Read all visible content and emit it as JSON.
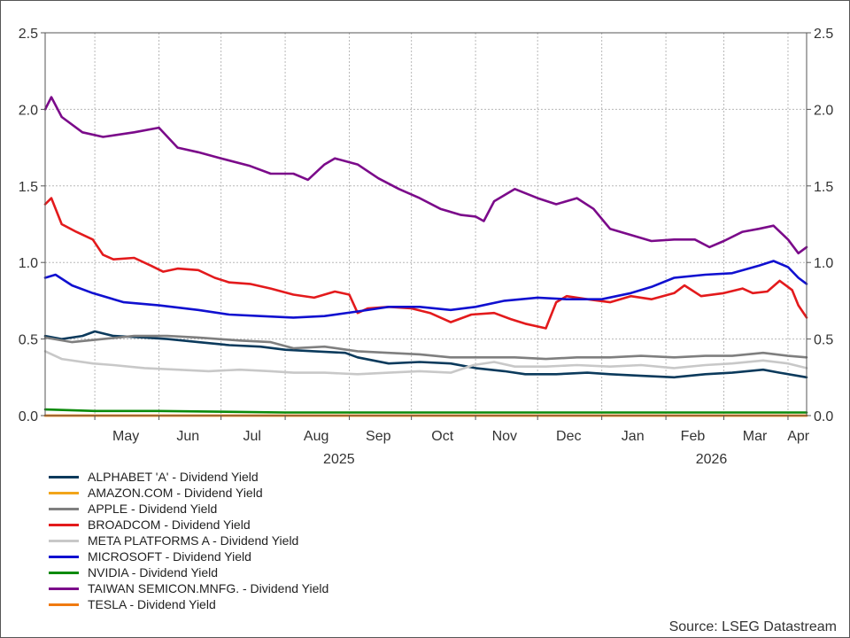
{
  "chart_data": {
    "type": "line",
    "title": "",
    "xlabel": "",
    "ylabel": "",
    "ylim": [
      0,
      2.5
    ],
    "y_ticks": [
      "0.0",
      "0.5",
      "1.0",
      "1.5",
      "2.0",
      "2.5"
    ],
    "y_axis_sides": "left-and-right",
    "grid": true,
    "x_range": [
      "2025-04-07",
      "2026-04-10"
    ],
    "month_labels": [
      {
        "label": "May",
        "date": "2025-05-16"
      },
      {
        "label": "Jun",
        "date": "2025-06-15"
      },
      {
        "label": "Jul",
        "date": "2025-07-16"
      },
      {
        "label": "Aug",
        "date": "2025-08-16"
      },
      {
        "label": "Sep",
        "date": "2025-09-15"
      },
      {
        "label": "Oct",
        "date": "2025-10-16"
      },
      {
        "label": "Nov",
        "date": "2025-11-15"
      },
      {
        "label": "Dec",
        "date": "2025-12-16"
      },
      {
        "label": "Jan",
        "date": "2026-01-16"
      },
      {
        "label": "Feb",
        "date": "2026-02-14"
      },
      {
        "label": "Mar",
        "date": "2026-03-16"
      },
      {
        "label": "Apr",
        "date": "2026-04-06"
      }
    ],
    "year_labels": [
      {
        "label": "2025",
        "date": "2025-08-27"
      },
      {
        "label": "2026",
        "date": "2026-02-23"
      }
    ],
    "x_gridline_dates": [
      "2025-05-01",
      "2025-06-01",
      "2025-07-01",
      "2025-08-01",
      "2025-09-01",
      "2025-10-01",
      "2025-11-01",
      "2025-12-01",
      "2026-01-01",
      "2026-02-01",
      "2026-03-01",
      "2026-04-01"
    ],
    "legend_position": "bottom-left",
    "series": [
      {
        "name": "ALPHABET 'A' - Dividend Yield",
        "color": "#0b3a5c",
        "points": [
          [
            "2025-04-07",
            0.52
          ],
          [
            "2025-04-15",
            0.5
          ],
          [
            "2025-04-25",
            0.52
          ],
          [
            "2025-05-01",
            0.55
          ],
          [
            "2025-05-10",
            0.52
          ],
          [
            "2025-05-25",
            0.51
          ],
          [
            "2025-06-05",
            0.5
          ],
          [
            "2025-06-20",
            0.48
          ],
          [
            "2025-07-05",
            0.46
          ],
          [
            "2025-07-20",
            0.45
          ],
          [
            "2025-08-01",
            0.43
          ],
          [
            "2025-08-15",
            0.42
          ],
          [
            "2025-08-30",
            0.41
          ],
          [
            "2025-09-05",
            0.38
          ],
          [
            "2025-09-20",
            0.34
          ],
          [
            "2025-10-05",
            0.35
          ],
          [
            "2025-10-20",
            0.34
          ],
          [
            "2025-11-01",
            0.31
          ],
          [
            "2025-11-15",
            0.29
          ],
          [
            "2025-11-25",
            0.27
          ],
          [
            "2025-12-10",
            0.27
          ],
          [
            "2025-12-25",
            0.28
          ],
          [
            "2026-01-05",
            0.27
          ],
          [
            "2026-01-20",
            0.26
          ],
          [
            "2026-02-05",
            0.25
          ],
          [
            "2026-02-20",
            0.27
          ],
          [
            "2026-03-05",
            0.28
          ],
          [
            "2026-03-20",
            0.3
          ],
          [
            "2026-03-28",
            0.28
          ],
          [
            "2026-04-10",
            0.25
          ]
        ]
      },
      {
        "name": "AMAZON.COM - Dividend Yield",
        "color": "#f2a51a",
        "points": [
          [
            "2025-04-07",
            0.0
          ],
          [
            "2026-04-10",
            0.0
          ]
        ]
      },
      {
        "name": "APPLE - Dividend Yield",
        "color": "#7f7f7f",
        "points": [
          [
            "2025-04-07",
            0.51
          ],
          [
            "2025-04-20",
            0.48
          ],
          [
            "2025-05-05",
            0.5
          ],
          [
            "2025-05-20",
            0.52
          ],
          [
            "2025-06-05",
            0.52
          ],
          [
            "2025-06-20",
            0.51
          ],
          [
            "2025-07-10",
            0.49
          ],
          [
            "2025-07-25",
            0.48
          ],
          [
            "2025-08-05",
            0.44
          ],
          [
            "2025-08-20",
            0.45
          ],
          [
            "2025-09-05",
            0.42
          ],
          [
            "2025-09-20",
            0.41
          ],
          [
            "2025-10-05",
            0.4
          ],
          [
            "2025-10-20",
            0.38
          ],
          [
            "2025-11-05",
            0.38
          ],
          [
            "2025-11-20",
            0.38
          ],
          [
            "2025-12-05",
            0.37
          ],
          [
            "2025-12-20",
            0.38
          ],
          [
            "2026-01-05",
            0.38
          ],
          [
            "2026-01-20",
            0.39
          ],
          [
            "2026-02-05",
            0.38
          ],
          [
            "2026-02-20",
            0.39
          ],
          [
            "2026-03-05",
            0.39
          ],
          [
            "2026-03-20",
            0.41
          ],
          [
            "2026-04-01",
            0.39
          ],
          [
            "2026-04-10",
            0.38
          ]
        ]
      },
      {
        "name": "BROADCOM - Dividend Yield",
        "color": "#e31a1c",
        "points": [
          [
            "2025-04-07",
            1.38
          ],
          [
            "2025-04-10",
            1.42
          ],
          [
            "2025-04-15",
            1.25
          ],
          [
            "2025-04-22",
            1.2
          ],
          [
            "2025-04-30",
            1.15
          ],
          [
            "2025-05-05",
            1.05
          ],
          [
            "2025-05-10",
            1.02
          ],
          [
            "2025-05-20",
            1.03
          ],
          [
            "2025-05-28",
            0.98
          ],
          [
            "2025-06-03",
            0.94
          ],
          [
            "2025-06-10",
            0.96
          ],
          [
            "2025-06-20",
            0.95
          ],
          [
            "2025-06-28",
            0.9
          ],
          [
            "2025-07-05",
            0.87
          ],
          [
            "2025-07-15",
            0.86
          ],
          [
            "2025-07-25",
            0.83
          ],
          [
            "2025-08-05",
            0.79
          ],
          [
            "2025-08-15",
            0.77
          ],
          [
            "2025-08-25",
            0.81
          ],
          [
            "2025-09-01",
            0.79
          ],
          [
            "2025-09-05",
            0.67
          ],
          [
            "2025-09-10",
            0.7
          ],
          [
            "2025-09-20",
            0.71
          ],
          [
            "2025-10-01",
            0.7
          ],
          [
            "2025-10-10",
            0.67
          ],
          [
            "2025-10-20",
            0.61
          ],
          [
            "2025-10-30",
            0.66
          ],
          [
            "2025-11-10",
            0.67
          ],
          [
            "2025-11-18",
            0.63
          ],
          [
            "2025-11-25",
            0.6
          ],
          [
            "2025-12-05",
            0.57
          ],
          [
            "2025-12-10",
            0.74
          ],
          [
            "2025-12-15",
            0.78
          ],
          [
            "2025-12-25",
            0.76
          ],
          [
            "2026-01-05",
            0.74
          ],
          [
            "2026-01-15",
            0.78
          ],
          [
            "2026-01-25",
            0.76
          ],
          [
            "2026-02-05",
            0.8
          ],
          [
            "2026-02-10",
            0.85
          ],
          [
            "2026-02-18",
            0.78
          ],
          [
            "2026-03-01",
            0.8
          ],
          [
            "2026-03-10",
            0.83
          ],
          [
            "2026-03-15",
            0.8
          ],
          [
            "2026-03-22",
            0.81
          ],
          [
            "2026-03-28",
            0.88
          ],
          [
            "2026-04-03",
            0.82
          ],
          [
            "2026-04-06",
            0.72
          ],
          [
            "2026-04-10",
            0.64
          ]
        ]
      },
      {
        "name": "META PLATFORMS A - Dividend Yield",
        "color": "#c8c8c8",
        "points": [
          [
            "2025-04-07",
            0.42
          ],
          [
            "2025-04-15",
            0.37
          ],
          [
            "2025-04-30",
            0.34
          ],
          [
            "2025-05-10",
            0.33
          ],
          [
            "2025-05-25",
            0.31
          ],
          [
            "2025-06-10",
            0.3
          ],
          [
            "2025-06-25",
            0.29
          ],
          [
            "2025-07-10",
            0.3
          ],
          [
            "2025-07-25",
            0.29
          ],
          [
            "2025-08-05",
            0.28
          ],
          [
            "2025-08-20",
            0.28
          ],
          [
            "2025-09-05",
            0.27
          ],
          [
            "2025-09-20",
            0.28
          ],
          [
            "2025-10-05",
            0.29
          ],
          [
            "2025-10-20",
            0.28
          ],
          [
            "2025-10-31",
            0.33
          ],
          [
            "2025-11-10",
            0.35
          ],
          [
            "2025-11-20",
            0.32
          ],
          [
            "2025-12-05",
            0.32
          ],
          [
            "2025-12-20",
            0.33
          ],
          [
            "2026-01-05",
            0.32
          ],
          [
            "2026-01-20",
            0.33
          ],
          [
            "2026-02-05",
            0.31
          ],
          [
            "2026-02-20",
            0.33
          ],
          [
            "2026-03-05",
            0.34
          ],
          [
            "2026-03-20",
            0.36
          ],
          [
            "2026-04-01",
            0.34
          ],
          [
            "2026-04-10",
            0.31
          ]
        ]
      },
      {
        "name": "MICROSOFT - Dividend Yield",
        "color": "#1010d0",
        "points": [
          [
            "2025-04-07",
            0.9
          ],
          [
            "2025-04-12",
            0.92
          ],
          [
            "2025-04-20",
            0.85
          ],
          [
            "2025-04-30",
            0.8
          ],
          [
            "2025-05-15",
            0.74
          ],
          [
            "2025-06-01",
            0.72
          ],
          [
            "2025-06-20",
            0.69
          ],
          [
            "2025-07-05",
            0.66
          ],
          [
            "2025-07-20",
            0.65
          ],
          [
            "2025-08-05",
            0.64
          ],
          [
            "2025-08-20",
            0.65
          ],
          [
            "2025-09-05",
            0.68
          ],
          [
            "2025-09-20",
            0.71
          ],
          [
            "2025-10-05",
            0.71
          ],
          [
            "2025-10-20",
            0.69
          ],
          [
            "2025-11-01",
            0.71
          ],
          [
            "2025-11-15",
            0.75
          ],
          [
            "2025-12-01",
            0.77
          ],
          [
            "2025-12-15",
            0.76
          ],
          [
            "2026-01-01",
            0.76
          ],
          [
            "2026-01-15",
            0.8
          ],
          [
            "2026-01-25",
            0.84
          ],
          [
            "2026-02-05",
            0.9
          ],
          [
            "2026-02-20",
            0.92
          ],
          [
            "2026-03-05",
            0.93
          ],
          [
            "2026-03-18",
            0.98
          ],
          [
            "2026-03-25",
            1.01
          ],
          [
            "2026-04-01",
            0.97
          ],
          [
            "2026-04-06",
            0.9
          ],
          [
            "2026-04-10",
            0.86
          ]
        ]
      },
      {
        "name": "NVIDIA - Dividend Yield",
        "color": "#0a8a0a",
        "points": [
          [
            "2025-04-07",
            0.04
          ],
          [
            "2025-05-01",
            0.03
          ],
          [
            "2025-06-01",
            0.03
          ],
          [
            "2025-08-01",
            0.02
          ],
          [
            "2025-10-01",
            0.02
          ],
          [
            "2025-11-01",
            0.02
          ],
          [
            "2026-01-01",
            0.02
          ],
          [
            "2026-03-01",
            0.02
          ],
          [
            "2026-04-10",
            0.02
          ]
        ]
      },
      {
        "name": "TAIWAN SEMICON.MNFG. - Dividend Yield",
        "color": "#7b0a8a",
        "points": [
          [
            "2025-04-07",
            2.0
          ],
          [
            "2025-04-10",
            2.08
          ],
          [
            "2025-04-15",
            1.95
          ],
          [
            "2025-04-25",
            1.85
          ],
          [
            "2025-05-05",
            1.82
          ],
          [
            "2025-05-20",
            1.85
          ],
          [
            "2025-06-01",
            1.88
          ],
          [
            "2025-06-10",
            1.75
          ],
          [
            "2025-06-20",
            1.72
          ],
          [
            "2025-07-01",
            1.68
          ],
          [
            "2025-07-15",
            1.63
          ],
          [
            "2025-07-25",
            1.58
          ],
          [
            "2025-08-05",
            1.58
          ],
          [
            "2025-08-12",
            1.54
          ],
          [
            "2025-08-20",
            1.64
          ],
          [
            "2025-08-25",
            1.68
          ],
          [
            "2025-09-05",
            1.64
          ],
          [
            "2025-09-15",
            1.55
          ],
          [
            "2025-09-25",
            1.48
          ],
          [
            "2025-10-05",
            1.42
          ],
          [
            "2025-10-15",
            1.35
          ],
          [
            "2025-10-25",
            1.31
          ],
          [
            "2025-11-01",
            1.3
          ],
          [
            "2025-11-05",
            1.27
          ],
          [
            "2025-11-10",
            1.4
          ],
          [
            "2025-11-20",
            1.48
          ],
          [
            "2025-12-01",
            1.42
          ],
          [
            "2025-12-10",
            1.38
          ],
          [
            "2025-12-20",
            1.42
          ],
          [
            "2025-12-28",
            1.35
          ],
          [
            "2026-01-05",
            1.22
          ],
          [
            "2026-01-15",
            1.18
          ],
          [
            "2026-01-25",
            1.14
          ],
          [
            "2026-02-05",
            1.15
          ],
          [
            "2026-02-15",
            1.15
          ],
          [
            "2026-02-22",
            1.1
          ],
          [
            "2026-03-01",
            1.14
          ],
          [
            "2026-03-10",
            1.2
          ],
          [
            "2026-03-18",
            1.22
          ],
          [
            "2026-03-25",
            1.24
          ],
          [
            "2026-04-01",
            1.15
          ],
          [
            "2026-04-06",
            1.06
          ],
          [
            "2026-04-10",
            1.1
          ]
        ]
      },
      {
        "name": "TESLA - Dividend Yield",
        "color": "#f07a10",
        "points": [
          [
            "2025-04-07",
            0.0
          ],
          [
            "2026-04-10",
            0.0
          ]
        ]
      }
    ]
  },
  "source_text": "Source: LSEG Datastream"
}
